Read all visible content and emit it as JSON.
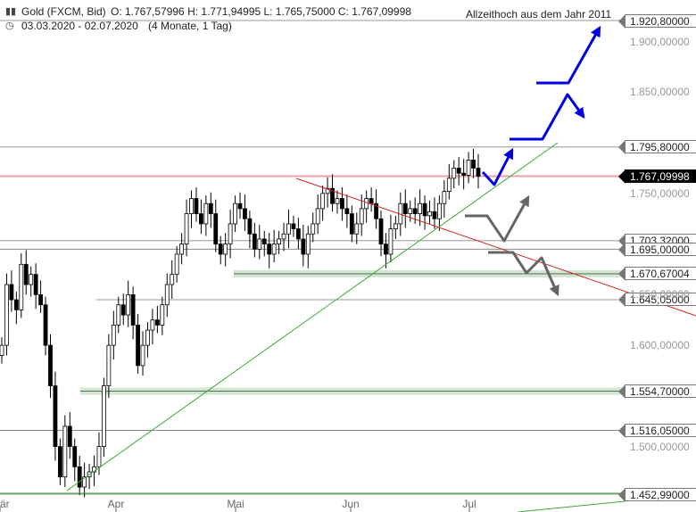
{
  "header": {
    "instrument": "Gold (FXCM, Bid)",
    "ohlc": "O: 1.767,57996  H: 1.771,94995  L: 1.765,75000  C: 1.767,09998",
    "period": "03.03.2020 - 02.07.2020",
    "interval": "(4 Monate, 1 Tag)"
  },
  "annotation": "Allzeithoch aus dem Jahr 2011",
  "icons": {
    "chart": "bar-chart-icon",
    "clock": "clock-icon"
  },
  "colors": {
    "up_candle": "#ffffff",
    "down_candle": "#000000",
    "support_zone": "#cfe8cf",
    "uptrend": "#3aaa35",
    "downtrend": "#d42020",
    "current_line": "#f0a0a0",
    "scenario_bull": "#0000e0",
    "scenario_bear": "#666666"
  },
  "chart_data": {
    "type": "candlestick",
    "x_start": "2020-03-03",
    "x_end": "2020-07-02",
    "xlabel": "",
    "ylabel": "",
    "ylim": [
      1452.99,
      1920.8
    ],
    "x_ticks": [
      "är",
      "Apr",
      "Mai",
      "Jun",
      "Jul"
    ],
    "y_ticks": [
      "1.500,00000",
      "1.600,00000",
      "1.650,00000",
      "1.750,00000",
      "1.850,00000",
      "1.900,00000"
    ],
    "y_tick_values": [
      1500,
      1600,
      1650,
      1750,
      1850,
      1900
    ],
    "price_levels": [
      {
        "label": "1.920,80000",
        "value": 1920.8,
        "line": true
      },
      {
        "label": "1.795,80000",
        "value": 1795.8,
        "line": true
      },
      {
        "label": "1.767,09998",
        "value": 1767.1,
        "current": true
      },
      {
        "label": "1.703,32000",
        "value": 1703.32,
        "line": true
      },
      {
        "label": "1.695,00000",
        "value": 1695.0,
        "line": true
      },
      {
        "label": "1.670,67004",
        "value": 1670.67,
        "zone": true
      },
      {
        "label": "1.645,05000",
        "value": 1645.05,
        "line": true
      },
      {
        "label": "1.554,70000",
        "value": 1554.7,
        "zone": true
      },
      {
        "label": "1.516,05000",
        "value": 1516.05,
        "line": true
      },
      {
        "label": "1.452,99000",
        "value": 1452.99,
        "line": true
      }
    ],
    "candles_close": [
      1600,
      1660,
      1645,
      1635,
      1680,
      1660,
      1670,
      1650,
      1640,
      1600,
      1560,
      1500,
      1470,
      1520,
      1500,
      1480,
      1460,
      1470,
      1475,
      1480,
      1500,
      1560,
      1600,
      1620,
      1640,
      1630,
      1650,
      1620,
      1580,
      1600,
      1615,
      1625,
      1620,
      1640,
      1660,
      1670,
      1690,
      1700,
      1730,
      1745,
      1730,
      1720,
      1740,
      1730,
      1700,
      1690,
      1700,
      1720,
      1740,
      1735,
      1725,
      1710,
      1695,
      1705,
      1700,
      1690,
      1700,
      1705,
      1710,
      1720,
      1715,
      1705,
      1690,
      1710,
      1720,
      1735,
      1750,
      1755,
      1740,
      1745,
      1735,
      1730,
      1710,
      1720,
      1735,
      1745,
      1740,
      1725,
      1700,
      1690,
      1715,
      1720,
      1740,
      1730,
      1735,
      1730,
      1740,
      1728,
      1732,
      1725,
      1740,
      1752,
      1765,
      1775,
      1770,
      1768,
      1783,
      1775,
      1767
    ]
  }
}
